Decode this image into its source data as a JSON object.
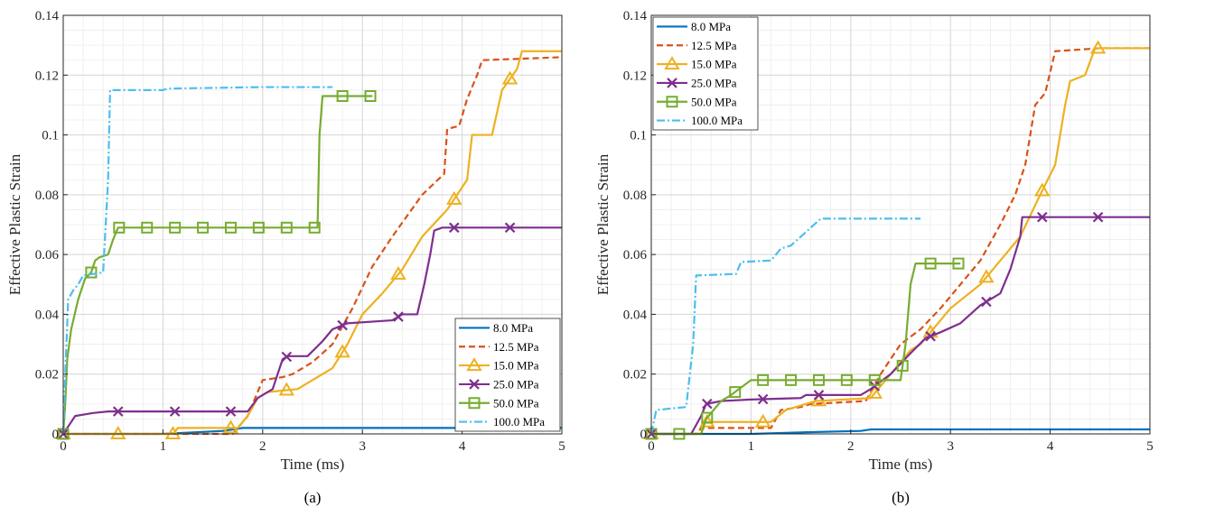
{
  "chart_data": [
    {
      "type": "line",
      "caption": "(a)",
      "xlabel": "Time (ms)",
      "ylabel": "Effective Plastic Strain",
      "xlim": [
        0,
        5
      ],
      "ylim": [
        0,
        0.14
      ],
      "xticks": [
        0,
        1,
        2,
        3,
        4,
        5
      ],
      "yticks": [
        0,
        0.02,
        0.04,
        0.06,
        0.08,
        0.1,
        0.12,
        0.14
      ],
      "xtick_labels": [
        "0",
        "1",
        "2",
        "3",
        "4",
        "5"
      ],
      "ytick_labels": [
        "0",
        "0.02",
        "0.04",
        "0.06",
        "0.08",
        "0.1",
        "0.12",
        "0.14"
      ],
      "grid": true,
      "legend_position": "bottom-right",
      "series": [
        {
          "name": "8.0 MPa",
          "color": "#0072BD",
          "dash": "solid",
          "marker": "none",
          "points": [
            [
              0,
              0
            ],
            [
              1.0,
              0
            ],
            [
              1.6,
              0.001
            ],
            [
              1.8,
              0.002
            ],
            [
              5,
              0.002
            ]
          ]
        },
        {
          "name": "12.5 MPa",
          "color": "#D95319",
          "dash": "dashed",
          "marker": "none",
          "points": [
            [
              0,
              0
            ],
            [
              1.7,
              0
            ],
            [
              1.85,
              0.006
            ],
            [
              1.95,
              0.014
            ],
            [
              2.0,
              0.018
            ],
            [
              2.2,
              0.019
            ],
            [
              2.3,
              0.02
            ],
            [
              2.5,
              0.024
            ],
            [
              2.7,
              0.03
            ],
            [
              2.9,
              0.042
            ],
            [
              3.1,
              0.056
            ],
            [
              3.3,
              0.066
            ],
            [
              3.6,
              0.08
            ],
            [
              3.82,
              0.087
            ],
            [
              3.85,
              0.102
            ],
            [
              3.97,
              0.103
            ],
            [
              4.05,
              0.112
            ],
            [
              4.15,
              0.12
            ],
            [
              4.2,
              0.125
            ],
            [
              5,
              0.126
            ]
          ]
        },
        {
          "name": "15.0 MPa",
          "color": "#EDB120",
          "dash": "solid",
          "marker": "triangle",
          "points": [
            [
              0,
              0
            ],
            [
              1.1,
              0
            ],
            [
              1.15,
              0.002
            ],
            [
              1.75,
              0.002
            ],
            [
              1.85,
              0.006
            ],
            [
              1.95,
              0.012
            ],
            [
              2.05,
              0.014
            ],
            [
              2.35,
              0.015
            ],
            [
              2.5,
              0.018
            ],
            [
              2.7,
              0.022
            ],
            [
              2.85,
              0.03
            ],
            [
              3.0,
              0.04
            ],
            [
              3.2,
              0.047
            ],
            [
              3.4,
              0.055
            ],
            [
              3.6,
              0.066
            ],
            [
              3.85,
              0.075
            ],
            [
              3.95,
              0.08
            ],
            [
              4.05,
              0.085
            ],
            [
              4.1,
              0.1
            ],
            [
              4.3,
              0.1
            ],
            [
              4.4,
              0.115
            ],
            [
              4.55,
              0.122
            ],
            [
              4.6,
              0.128
            ],
            [
              5,
              0.128
            ]
          ],
          "marker_x": [
            0,
            0.55,
            1.1,
            1.68,
            2.24,
            2.8,
            3.36,
            3.92,
            4.48
          ]
        },
        {
          "name": "25.0 MPa",
          "color": "#7E2F8E",
          "dash": "solid",
          "marker": "x",
          "points": [
            [
              0,
              0
            ],
            [
              0.06,
              0.003
            ],
            [
              0.12,
              0.006
            ],
            [
              0.3,
              0.007
            ],
            [
              0.45,
              0.0075
            ],
            [
              1.85,
              0.0075
            ],
            [
              1.95,
              0.012
            ],
            [
              2.1,
              0.015
            ],
            [
              2.2,
              0.025
            ],
            [
              2.25,
              0.026
            ],
            [
              2.45,
              0.026
            ],
            [
              2.6,
              0.031
            ],
            [
              2.7,
              0.035
            ],
            [
              2.85,
              0.037
            ],
            [
              3.3,
              0.038
            ],
            [
              3.4,
              0.04
            ],
            [
              3.55,
              0.04
            ],
            [
              3.62,
              0.05
            ],
            [
              3.68,
              0.06
            ],
            [
              3.72,
              0.068
            ],
            [
              3.8,
              0.069
            ],
            [
              5,
              0.069
            ]
          ],
          "marker_x": [
            0,
            0.55,
            1.12,
            1.68,
            2.24,
            2.8,
            3.36,
            3.92,
            4.48
          ]
        },
        {
          "name": "50.0 MPa",
          "color": "#77AC30",
          "dash": "solid",
          "marker": "square",
          "points": [
            [
              0,
              0
            ],
            [
              0.02,
              0.01
            ],
            [
              0.04,
              0.025
            ],
            [
              0.08,
              0.035
            ],
            [
              0.15,
              0.045
            ],
            [
              0.22,
              0.052
            ],
            [
              0.28,
              0.054
            ],
            [
              0.32,
              0.058
            ],
            [
              0.36,
              0.059
            ],
            [
              0.45,
              0.06
            ],
            [
              0.5,
              0.065
            ],
            [
              0.55,
              0.069
            ],
            [
              2.55,
              0.069
            ],
            [
              2.57,
              0.1
            ],
            [
              2.6,
              0.113
            ],
            [
              2.8,
              0.113
            ],
            [
              3.1,
              0.113
            ]
          ],
          "marker_x": [
            0,
            0.28,
            0.56,
            0.84,
            1.12,
            1.4,
            1.68,
            1.96,
            2.24,
            2.52,
            2.8,
            3.08
          ]
        },
        {
          "name": "100.0 MPa",
          "color": "#4DBEEE",
          "dash": "dashdot",
          "marker": "none",
          "points": [
            [
              0,
              0
            ],
            [
              0.02,
              0.02
            ],
            [
              0.05,
              0.045
            ],
            [
              0.1,
              0.048
            ],
            [
              0.15,
              0.05
            ],
            [
              0.2,
              0.053
            ],
            [
              0.4,
              0.054
            ],
            [
              0.45,
              0.085
            ],
            [
              0.47,
              0.115
            ],
            [
              1.0,
              0.115
            ],
            [
              1.05,
              0.1155
            ],
            [
              2.0,
              0.116
            ],
            [
              2.7,
              0.116
            ]
          ]
        }
      ]
    },
    {
      "type": "line",
      "caption": "(b)",
      "xlabel": "Time (ms)",
      "ylabel": "Effective Plastic Strain",
      "xlim": [
        0,
        5
      ],
      "ylim": [
        0,
        0.14
      ],
      "xticks": [
        0,
        1,
        2,
        3,
        4,
        5
      ],
      "yticks": [
        0,
        0.02,
        0.04,
        0.06,
        0.08,
        0.1,
        0.12,
        0.14
      ],
      "xtick_labels": [
        "0",
        "1",
        "2",
        "3",
        "4",
        "5"
      ],
      "ytick_labels": [
        "0",
        "0.02",
        "0.04",
        "0.06",
        "0.08",
        "0.1",
        "0.12",
        "0.14"
      ],
      "grid": true,
      "legend_position": "top-left",
      "series": [
        {
          "name": "8.0 MPa",
          "color": "#0072BD",
          "dash": "solid",
          "marker": "none",
          "points": [
            [
              0,
              0
            ],
            [
              1.0,
              0
            ],
            [
              1.5,
              0.0005
            ],
            [
              2.1,
              0.001
            ],
            [
              2.2,
              0.0015
            ],
            [
              5,
              0.0015
            ]
          ]
        },
        {
          "name": "12.5 MPa",
          "color": "#D95319",
          "dash": "dashed",
          "marker": "none",
          "points": [
            [
              0,
              0
            ],
            [
              0.45,
              0
            ],
            [
              0.5,
              0.002
            ],
            [
              1.2,
              0.002
            ],
            [
              1.3,
              0.008
            ],
            [
              1.5,
              0.009
            ],
            [
              1.6,
              0.01
            ],
            [
              2.15,
              0.011
            ],
            [
              2.3,
              0.02
            ],
            [
              2.5,
              0.03
            ],
            [
              2.7,
              0.035
            ],
            [
              2.9,
              0.042
            ],
            [
              3.1,
              0.05
            ],
            [
              3.3,
              0.058
            ],
            [
              3.5,
              0.07
            ],
            [
              3.65,
              0.08
            ],
            [
              3.75,
              0.09
            ],
            [
              3.85,
              0.11
            ],
            [
              3.95,
              0.114
            ],
            [
              4.05,
              0.128
            ],
            [
              4.5,
              0.129
            ],
            [
              5,
              0.129
            ]
          ]
        },
        {
          "name": "15.0 MPa",
          "color": "#EDB120",
          "dash": "solid",
          "marker": "triangle",
          "points": [
            [
              0,
              0
            ],
            [
              0.5,
              0
            ],
            [
              0.52,
              0.004
            ],
            [
              1.2,
              0.004
            ],
            [
              1.35,
              0.008
            ],
            [
              1.55,
              0.01
            ],
            [
              1.65,
              0.011
            ],
            [
              2.2,
              0.012
            ],
            [
              2.4,
              0.02
            ],
            [
              2.6,
              0.028
            ],
            [
              2.7,
              0.03
            ],
            [
              2.85,
              0.036
            ],
            [
              3.0,
              0.042
            ],
            [
              3.3,
              0.05
            ],
            [
              3.5,
              0.058
            ],
            [
              3.7,
              0.066
            ],
            [
              3.9,
              0.08
            ],
            [
              4.05,
              0.09
            ],
            [
              4.1,
              0.1
            ],
            [
              4.15,
              0.11
            ],
            [
              4.2,
              0.118
            ],
            [
              4.35,
              0.12
            ],
            [
              4.45,
              0.129
            ],
            [
              5,
              0.129
            ]
          ],
          "marker_x": [
            0,
            0.56,
            1.12,
            1.68,
            2.24,
            2.8,
            3.36,
            3.92,
            4.48
          ]
        },
        {
          "name": "25.0 MPa",
          "color": "#7E2F8E",
          "dash": "solid",
          "marker": "x",
          "points": [
            [
              0,
              0
            ],
            [
              0.4,
              0
            ],
            [
              0.5,
              0.006
            ],
            [
              0.55,
              0.01
            ],
            [
              0.7,
              0.011
            ],
            [
              1.0,
              0.0115
            ],
            [
              1.5,
              0.012
            ],
            [
              1.55,
              0.013
            ],
            [
              2.1,
              0.013
            ],
            [
              2.2,
              0.015
            ],
            [
              2.4,
              0.02
            ],
            [
              2.6,
              0.027
            ],
            [
              2.75,
              0.032
            ],
            [
              2.9,
              0.034
            ],
            [
              3.1,
              0.037
            ],
            [
              3.3,
              0.043
            ],
            [
              3.5,
              0.047
            ],
            [
              3.6,
              0.055
            ],
            [
              3.7,
              0.066
            ],
            [
              3.72,
              0.0725
            ],
            [
              5,
              0.0725
            ]
          ],
          "marker_x": [
            0,
            0.56,
            1.12,
            1.68,
            2.24,
            2.8,
            3.36,
            3.92,
            4.48
          ]
        },
        {
          "name": "50.0 MPa",
          "color": "#77AC30",
          "dash": "solid",
          "marker": "square",
          "points": [
            [
              0,
              0
            ],
            [
              0.5,
              0
            ],
            [
              0.55,
              0.005
            ],
            [
              0.7,
              0.011
            ],
            [
              0.8,
              0.013
            ],
            [
              1.0,
              0.018
            ],
            [
              2.5,
              0.018
            ],
            [
              2.55,
              0.03
            ],
            [
              2.6,
              0.05
            ],
            [
              2.65,
              0.057
            ],
            [
              3.1,
              0.057
            ]
          ],
          "marker_x": [
            0,
            0.28,
            0.56,
            0.84,
            1.12,
            1.4,
            1.68,
            1.96,
            2.24,
            2.52,
            2.8,
            3.08
          ]
        },
        {
          "name": "100.0 MPa",
          "color": "#4DBEEE",
          "dash": "dashdot",
          "marker": "none",
          "points": [
            [
              0,
              0
            ],
            [
              0.05,
              0.008
            ],
            [
              0.35,
              0.009
            ],
            [
              0.42,
              0.03
            ],
            [
              0.45,
              0.053
            ],
            [
              0.85,
              0.0535
            ],
            [
              0.9,
              0.0575
            ],
            [
              1.2,
              0.058
            ],
            [
              1.3,
              0.062
            ],
            [
              1.4,
              0.063
            ],
            [
              1.5,
              0.066
            ],
            [
              1.6,
              0.069
            ],
            [
              1.7,
              0.072
            ],
            [
              2.0,
              0.072
            ],
            [
              2.7,
              0.072
            ]
          ]
        }
      ]
    }
  ]
}
